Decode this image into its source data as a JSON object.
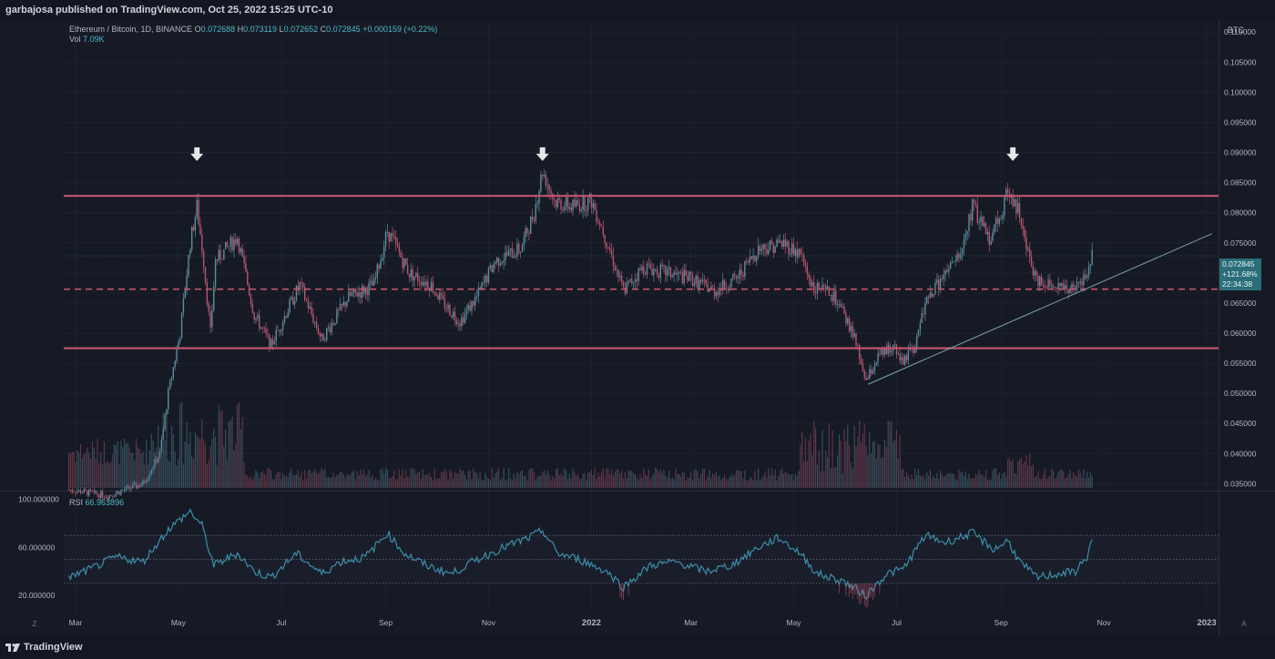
{
  "header": {
    "published_text": "garbajosa published on TradingView.com, Oct 25, 2022 15:25 UTC-10"
  },
  "legend": {
    "symbol": "Ethereum / Bitcoin, 1D, BINANCE",
    "o_label": "O",
    "o_value": "0.072688",
    "h_label": "H",
    "h_value": "0.073119",
    "l_label": "L",
    "l_value": "0.072652",
    "c_label": "C",
    "c_value": "0.072845",
    "change": "+0.000159 (+0.22%)",
    "vol_label": "Vol",
    "vol_value": "7.09K"
  },
  "price_tag": {
    "price": "0.072845",
    "change_pct": "+121.68%",
    "countdown": "22:34:38"
  },
  "rsi_legend": {
    "label": "RSI",
    "value": "66.963896"
  },
  "footer": {
    "brand": "TradingView",
    "left_button": "Z",
    "right_button": "A"
  },
  "colors": {
    "background": "#161a25",
    "level_line": "#c2556f",
    "trendline": "#7aa6b4",
    "candle_up": "#5b8f9e",
    "candle_down": "#b9566f",
    "rsi_line": "#3c8fa8",
    "rsi_oversold": "#c2556f"
  },
  "chart_data": [
    {
      "type": "candlestick",
      "title": "",
      "y_unit": "BTC",
      "ylim": [
        0.034,
        0.112
      ],
      "y_ticks": [
        "0.110000",
        "0.105000",
        "0.100000",
        "0.095000",
        "0.090000",
        "0.085000",
        "0.080000",
        "0.075000",
        "0.070000",
        "0.065000",
        "0.060000",
        "0.055000",
        "0.050000",
        "0.045000",
        "0.040000",
        "0.035000"
      ],
      "x_ticks": [
        "Mar",
        "May",
        "Jul",
        "Sep",
        "Nov",
        "2022",
        "Mar",
        "May",
        "Jul",
        "Sep",
        "Nov",
        "2023"
      ],
      "x_range": [
        "2021-02-22",
        "2023-01-08"
      ],
      "close_path": [
        [
          "2021-02-25",
          0.034
        ],
        [
          "2021-03-20",
          0.033
        ],
        [
          "2021-04-10",
          0.035
        ],
        [
          "2021-04-20",
          0.04
        ],
        [
          "2021-04-25",
          0.05
        ],
        [
          "2021-05-02",
          0.06
        ],
        [
          "2021-05-08",
          0.075
        ],
        [
          "2021-05-12",
          0.081
        ],
        [
          "2021-05-16",
          0.072
        ],
        [
          "2021-05-20",
          0.06
        ],
        [
          "2021-05-23",
          0.072
        ],
        [
          "2021-06-05",
          0.076
        ],
        [
          "2021-06-15",
          0.063
        ],
        [
          "2021-06-25",
          0.058
        ],
        [
          "2021-07-05",
          0.064
        ],
        [
          "2021-07-12",
          0.068
        ],
        [
          "2021-07-25",
          0.059
        ],
        [
          "2021-08-01",
          0.062
        ],
        [
          "2021-08-10",
          0.066
        ],
        [
          "2021-08-25",
          0.068
        ],
        [
          "2021-09-02",
          0.077
        ],
        [
          "2021-09-15",
          0.07
        ],
        [
          "2021-09-28",
          0.068
        ],
        [
          "2021-10-05",
          0.065
        ],
        [
          "2021-10-15",
          0.062
        ],
        [
          "2021-10-25",
          0.066
        ],
        [
          "2021-11-05",
          0.072
        ],
        [
          "2021-11-20",
          0.074
        ],
        [
          "2021-11-28",
          0.08
        ],
        [
          "2021-12-03",
          0.087
        ],
        [
          "2021-12-10",
          0.082
        ],
        [
          "2021-12-20",
          0.081
        ],
        [
          "2022-01-01",
          0.082
        ],
        [
          "2022-01-08",
          0.077
        ],
        [
          "2022-01-20",
          0.067
        ],
        [
          "2022-02-01",
          0.071
        ],
        [
          "2022-02-15",
          0.07
        ],
        [
          "2022-03-01",
          0.069
        ],
        [
          "2022-03-15",
          0.067
        ],
        [
          "2022-03-28",
          0.069
        ],
        [
          "2022-04-10",
          0.074
        ],
        [
          "2022-04-25",
          0.075
        ],
        [
          "2022-05-05",
          0.073
        ],
        [
          "2022-05-12",
          0.068
        ],
        [
          "2022-05-25",
          0.066
        ],
        [
          "2022-06-05",
          0.06
        ],
        [
          "2022-06-13",
          0.052
        ],
        [
          "2022-06-20",
          0.056
        ],
        [
          "2022-06-30",
          0.058
        ],
        [
          "2022-07-05",
          0.055
        ],
        [
          "2022-07-12",
          0.058
        ],
        [
          "2022-07-18",
          0.065
        ],
        [
          "2022-07-28",
          0.069
        ],
        [
          "2022-08-08",
          0.073
        ],
        [
          "2022-08-15",
          0.081
        ],
        [
          "2022-08-25",
          0.076
        ],
        [
          "2022-09-01",
          0.08
        ],
        [
          "2022-09-05",
          0.084
        ],
        [
          "2022-09-12",
          0.08
        ],
        [
          "2022-09-15",
          0.075
        ],
        [
          "2022-09-22",
          0.069
        ],
        [
          "2022-10-05",
          0.068
        ],
        [
          "2022-10-15",
          0.067
        ],
        [
          "2022-10-22",
          0.07
        ],
        [
          "2022-10-25",
          0.0728
        ]
      ],
      "horizontal_levels": [
        {
          "value": 0.0828,
          "style": "solid"
        },
        {
          "value": 0.0673,
          "style": "dashed"
        },
        {
          "value": 0.0575,
          "style": "solid"
        }
      ],
      "trendline": [
        [
          "2022-06-14",
          0.0515
        ],
        [
          "2023-01-04",
          0.0765
        ]
      ],
      "arrows": [
        "2021-05-12",
        "2021-12-03",
        "2022-09-08"
      ]
    },
    {
      "type": "line",
      "title": "",
      "y_ticks": [
        "100.000000",
        "60.000000",
        "20.000000"
      ],
      "ylim": [
        5,
        105
      ],
      "levels": [
        70,
        50,
        30
      ],
      "series_path": [
        [
          "2021-02-25",
          35
        ],
        [
          "2021-03-10",
          42
        ],
        [
          "2021-03-25",
          52
        ],
        [
          "2021-04-10",
          48
        ],
        [
          "2021-04-25",
          75
        ],
        [
          "2021-05-08",
          90
        ],
        [
          "2021-05-15",
          78
        ],
        [
          "2021-05-22",
          45
        ],
        [
          "2021-06-05",
          55
        ],
        [
          "2021-06-15",
          40
        ],
        [
          "2021-06-25",
          35
        ],
        [
          "2021-07-10",
          55
        ],
        [
          "2021-07-25",
          38
        ],
        [
          "2021-08-05",
          48
        ],
        [
          "2021-08-20",
          52
        ],
        [
          "2021-09-02",
          72
        ],
        [
          "2021-09-12",
          55
        ],
        [
          "2021-09-25",
          45
        ],
        [
          "2021-10-10",
          38
        ],
        [
          "2021-10-25",
          50
        ],
        [
          "2021-11-10",
          60
        ],
        [
          "2021-11-25",
          68
        ],
        [
          "2021-12-03",
          74
        ],
        [
          "2021-12-12",
          55
        ],
        [
          "2021-12-25",
          50
        ],
        [
          "2022-01-10",
          40
        ],
        [
          "2022-01-20",
          27
        ],
        [
          "2022-02-05",
          45
        ],
        [
          "2022-02-20",
          48
        ],
        [
          "2022-03-10",
          40
        ],
        [
          "2022-03-25",
          45
        ],
        [
          "2022-04-10",
          60
        ],
        [
          "2022-04-22",
          68
        ],
        [
          "2022-05-05",
          55
        ],
        [
          "2022-05-15",
          38
        ],
        [
          "2022-05-30",
          32
        ],
        [
          "2022-06-13",
          20
        ],
        [
          "2022-06-25",
          38
        ],
        [
          "2022-07-05",
          42
        ],
        [
          "2022-07-18",
          70
        ],
        [
          "2022-07-30",
          64
        ],
        [
          "2022-08-15",
          72
        ],
        [
          "2022-08-28",
          58
        ],
        [
          "2022-09-05",
          66
        ],
        [
          "2022-09-12",
          48
        ],
        [
          "2022-09-22",
          35
        ],
        [
          "2022-10-05",
          38
        ],
        [
          "2022-10-15",
          40
        ],
        [
          "2022-10-22",
          52
        ],
        [
          "2022-10-25",
          67
        ]
      ]
    }
  ]
}
